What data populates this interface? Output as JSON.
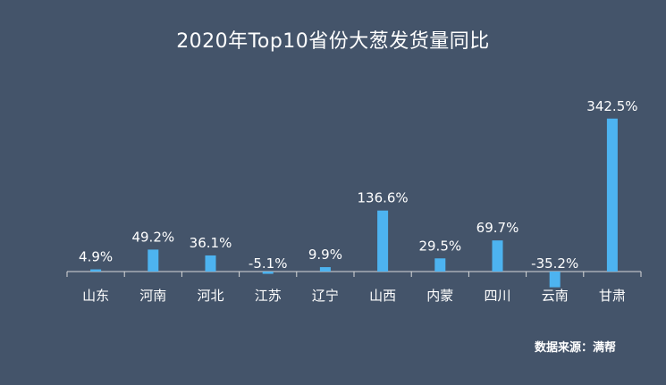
{
  "chart_data": {
    "type": "bar",
    "title": "2020年Top10省份大葱发货量同比",
    "categories": [
      "山东",
      "河南",
      "河北",
      "江苏",
      "辽宁",
      "山西",
      "内蒙",
      "四川",
      "云南",
      "甘肃"
    ],
    "values": [
      4.9,
      49.2,
      36.1,
      -5.1,
      9.9,
      136.6,
      29.5,
      69.7,
      -35.2,
      342.5
    ],
    "data_labels": [
      "4.9%",
      "49.2%",
      "36.1%",
      "-5.1%",
      "9.9%",
      "136.6%",
      "29.5%",
      "69.7%",
      "-35.2%",
      "342.5%"
    ],
    "unit": "%",
    "ylim": [
      -35.2,
      342.5
    ],
    "grid": false,
    "legend": "none",
    "colors": {
      "background": "#44546a",
      "bar": "#4db3f0",
      "axis": "#d9d9d9",
      "text": "#ffffff"
    }
  },
  "footer": {
    "source": "数据来源：满帮"
  }
}
